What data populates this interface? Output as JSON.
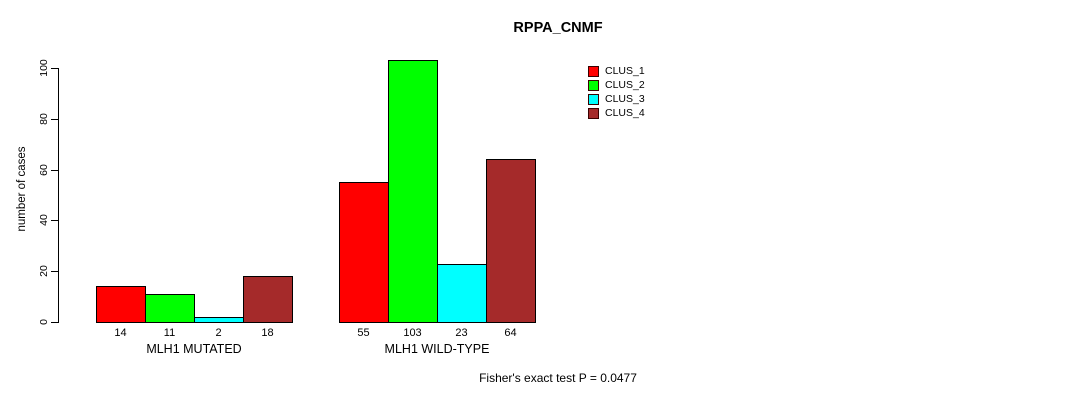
{
  "chart_data": {
    "type": "bar",
    "title": "RPPA_CNMF",
    "ylabel": "number of cases",
    "xlabel": "",
    "categories": [
      "MLH1 MUTATED",
      "MLH1 WILD-TYPE"
    ],
    "series": [
      {
        "name": "CLUS_1",
        "color": "#ff0000",
        "values": [
          14,
          55
        ]
      },
      {
        "name": "CLUS_2",
        "color": "#00ff00",
        "values": [
          11,
          103
        ]
      },
      {
        "name": "CLUS_3",
        "color": "#00ffff",
        "values": [
          2,
          23
        ]
      },
      {
        "name": "CLUS_4",
        "color": "#a52a2a",
        "values": [
          18,
          64
        ]
      }
    ],
    "bar_value_labels": [
      [
        14,
        11,
        2,
        18
      ],
      [
        55,
        103,
        23,
        64
      ]
    ],
    "yticks": [
      0,
      20,
      40,
      60,
      80,
      100
    ],
    "ylim": [
      0,
      103
    ],
    "grid": false,
    "legend_position": "top-right",
    "annotation": "Fisher's exact test P = 0.0477",
    "axis_color": "#000000",
    "text_color": "#000000"
  }
}
